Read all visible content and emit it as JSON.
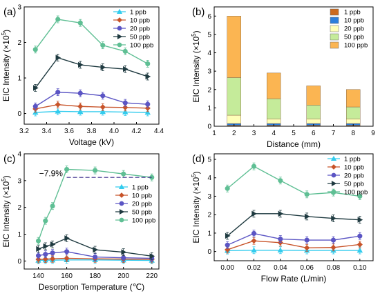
{
  "chart_data": [
    {
      "panel": "(a)",
      "type": "line",
      "xlabel": "Voltage (kV)",
      "ylabel": "EIC Intensity (×10",
      "ylabel_sup": "5",
      "ylabel_end": ")",
      "xlim": [
        3.2,
        4.4
      ],
      "ylim": [
        -0.3,
        3.0
      ],
      "xticks": [
        3.2,
        3.4,
        3.6,
        3.8,
        4.0,
        4.2,
        4.4
      ],
      "yticks": [
        0,
        1,
        2,
        3
      ],
      "xtick_labels": [
        "3.2",
        "3.4",
        "3.6",
        "3.8",
        "4.0",
        "4.2",
        "4.4"
      ],
      "ytick_labels": [
        "0",
        "1",
        "2",
        "3"
      ],
      "x": [
        3.3,
        3.5,
        3.7,
        3.9,
        4.1,
        4.3
      ],
      "legend_position": "top-right",
      "series": [
        {
          "name": "1 ppb",
          "color": "#33ccee",
          "marker": "triangle",
          "values": [
            0.03,
            0.06,
            0.05,
            0.05,
            0.04,
            0.03
          ]
        },
        {
          "name": "10 ppb",
          "color": "#c8542a",
          "marker": "diamond",
          "values": [
            0.13,
            0.25,
            0.2,
            0.18,
            0.17,
            0.15
          ]
        },
        {
          "name": "20 ppb",
          "color": "#5b55c4",
          "marker": "circle",
          "values": [
            0.2,
            0.6,
            0.57,
            0.5,
            0.3,
            0.26
          ]
        },
        {
          "name": "50 ppb",
          "color": "#1f3a40",
          "marker": "right-triangle",
          "values": [
            0.72,
            1.57,
            1.37,
            1.3,
            1.25,
            1.04
          ]
        },
        {
          "name": "100 ppb",
          "color": "#5fbf94",
          "marker": "circle",
          "values": [
            1.8,
            2.65,
            2.55,
            1.92,
            1.75,
            1.4
          ]
        }
      ]
    },
    {
      "panel": "(b)",
      "type": "bar",
      "stacked": true,
      "xlabel": "Distance (mm)",
      "ylabel": "EIC Intensity (×10",
      "ylabel_sup": "5",
      "ylabel_end": ")",
      "xlim": [
        1,
        9
      ],
      "ylim": [
        0,
        6.5
      ],
      "xticks": [
        1,
        2,
        3,
        4,
        5,
        6,
        7,
        8,
        9
      ],
      "yticks": [
        0,
        1,
        2,
        3,
        4,
        5,
        6
      ],
      "xtick_labels": [
        "1",
        "2",
        "3",
        "4",
        "5",
        "6",
        "7",
        "8",
        "9"
      ],
      "ytick_labels": [
        "0",
        "1",
        "2",
        "3",
        "4",
        "5",
        "6"
      ],
      "categories": [
        2,
        4,
        6,
        8
      ],
      "legend_position": "top-right",
      "series": [
        {
          "name": "1 ppb",
          "color": "#cc6a1e",
          "values": [
            0.05,
            0.05,
            0.05,
            0.05
          ]
        },
        {
          "name": "10 ppb",
          "color": "#2d7fdc",
          "values": [
            0.1,
            0.1,
            0.1,
            0.1
          ]
        },
        {
          "name": "20 ppb",
          "color": "#ffffb8",
          "values": [
            0.45,
            0.25,
            0.25,
            0.25
          ]
        },
        {
          "name": "50 ppb",
          "color": "#c5eb9a",
          "values": [
            2.05,
            1.1,
            0.75,
            0.65
          ]
        },
        {
          "name": "100 ppb",
          "color": "#fbb552",
          "values": [
            3.35,
            1.4,
            1.05,
            0.95
          ]
        }
      ]
    },
    {
      "panel": "(c)",
      "type": "line",
      "xlabel": "Desorption Temperature (℃)",
      "ylabel": "EIC Intensity (×10",
      "ylabel_sup": "5",
      "ylabel_end": ")",
      "xlim": [
        130,
        225
      ],
      "ylim": [
        -0.3,
        4.0
      ],
      "xticks": [
        140,
        160,
        180,
        200,
        220
      ],
      "yticks": [
        0,
        1,
        2,
        3,
        4
      ],
      "xtick_labels": [
        "140",
        "160",
        "180",
        "200",
        "220"
      ],
      "ytick_labels": [
        "0",
        "1",
        "2",
        "3",
        "4"
      ],
      "x": [
        140,
        145,
        150,
        160,
        180,
        200,
        220
      ],
      "legend_position": "center-right",
      "annotation": "−7.9%",
      "series": [
        {
          "name": "1 ppb",
          "color": "#33ccee",
          "marker": "triangle",
          "values": [
            0.02,
            0.03,
            0.03,
            0.04,
            0.04,
            0.03,
            0.02
          ]
        },
        {
          "name": "10 ppb",
          "color": "#c8542a",
          "marker": "diamond",
          "values": [
            0.06,
            0.07,
            0.08,
            0.1,
            0.08,
            0.07,
            0.06
          ]
        },
        {
          "name": "20 ppb",
          "color": "#5b55c4",
          "marker": "circle",
          "values": [
            0.2,
            0.25,
            0.3,
            0.35,
            0.15,
            0.12,
            0.1
          ]
        },
        {
          "name": "50 ppb",
          "color": "#1f3a40",
          "marker": "right-triangle",
          "values": [
            0.45,
            0.55,
            0.62,
            0.85,
            0.42,
            0.33,
            0.18
          ]
        },
        {
          "name": "100 ppb",
          "color": "#5fbf94",
          "marker": "circle",
          "values": [
            0.75,
            1.5,
            2.05,
            3.42,
            3.38,
            3.25,
            3.12
          ]
        }
      ]
    },
    {
      "panel": "(d)",
      "type": "line",
      "xlabel": "Flow Rate (L/min)",
      "ylabel": "EIC Intensity (×10",
      "ylabel_sup": "5",
      "ylabel_end": ")",
      "xlim": [
        -0.01,
        0.11
      ],
      "ylim": [
        -0.5,
        5.3
      ],
      "xticks": [
        0.0,
        0.02,
        0.04,
        0.06,
        0.08,
        0.1
      ],
      "yticks": [
        0,
        1,
        2,
        3,
        4,
        5
      ],
      "xtick_labels": [
        "0.00",
        "0.02",
        "0.04",
        "0.06",
        "0.08",
        "0.10"
      ],
      "ytick_labels": [
        "0",
        "1",
        "2",
        "3",
        "4",
        "5"
      ],
      "x": [
        0.0,
        0.02,
        0.04,
        0.06,
        0.08,
        0.1
      ],
      "legend_position": "top-right",
      "series": [
        {
          "name": "1 ppb",
          "color": "#33ccee",
          "marker": "triangle",
          "values": [
            0.05,
            0.07,
            0.07,
            0.06,
            0.06,
            0.06
          ]
        },
        {
          "name": "10 ppb",
          "color": "#c8542a",
          "marker": "diamond",
          "values": [
            0.1,
            0.58,
            0.48,
            0.2,
            0.22,
            0.38
          ]
        },
        {
          "name": "20 ppb",
          "color": "#5b55c4",
          "marker": "circle",
          "values": [
            0.35,
            0.98,
            0.68,
            0.62,
            0.62,
            0.84
          ]
        },
        {
          "name": "50 ppb",
          "color": "#1f3a40",
          "marker": "right-triangle",
          "values": [
            0.85,
            2.05,
            2.05,
            1.9,
            1.8,
            1.72
          ]
        },
        {
          "name": "100 ppb",
          "color": "#5fbf94",
          "marker": "circle",
          "values": [
            3.42,
            4.62,
            3.85,
            3.1,
            3.2,
            3.0
          ]
        }
      ]
    }
  ]
}
